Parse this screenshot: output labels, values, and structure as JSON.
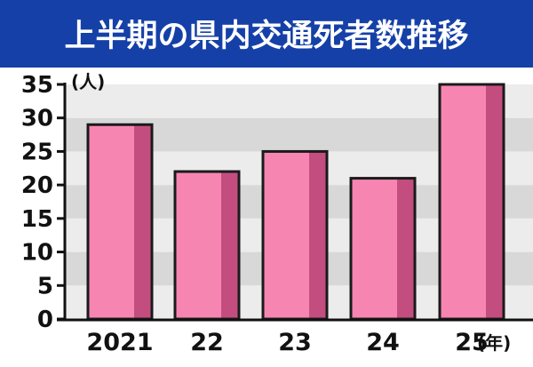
{
  "chart_data": {
    "type": "bar",
    "title": "上半期の県内交通死者数推移",
    "categories": [
      "2021",
      "22",
      "23",
      "24",
      "25"
    ],
    "values": [
      29,
      22,
      25,
      21,
      35
    ],
    "ylabel": "(人)",
    "xlabel": "(年)",
    "ylim": [
      0,
      35
    ],
    "yticks": [
      0,
      5,
      10,
      15,
      20,
      25,
      30,
      35
    ],
    "grid": true,
    "colors": {
      "title_bg": "#1540a8",
      "bar_front": "#f785b2",
      "bar_side": "#c44d80",
      "band_light": "#ececec",
      "band_dark": "#d8d8d8",
      "axis": "#111111"
    }
  }
}
